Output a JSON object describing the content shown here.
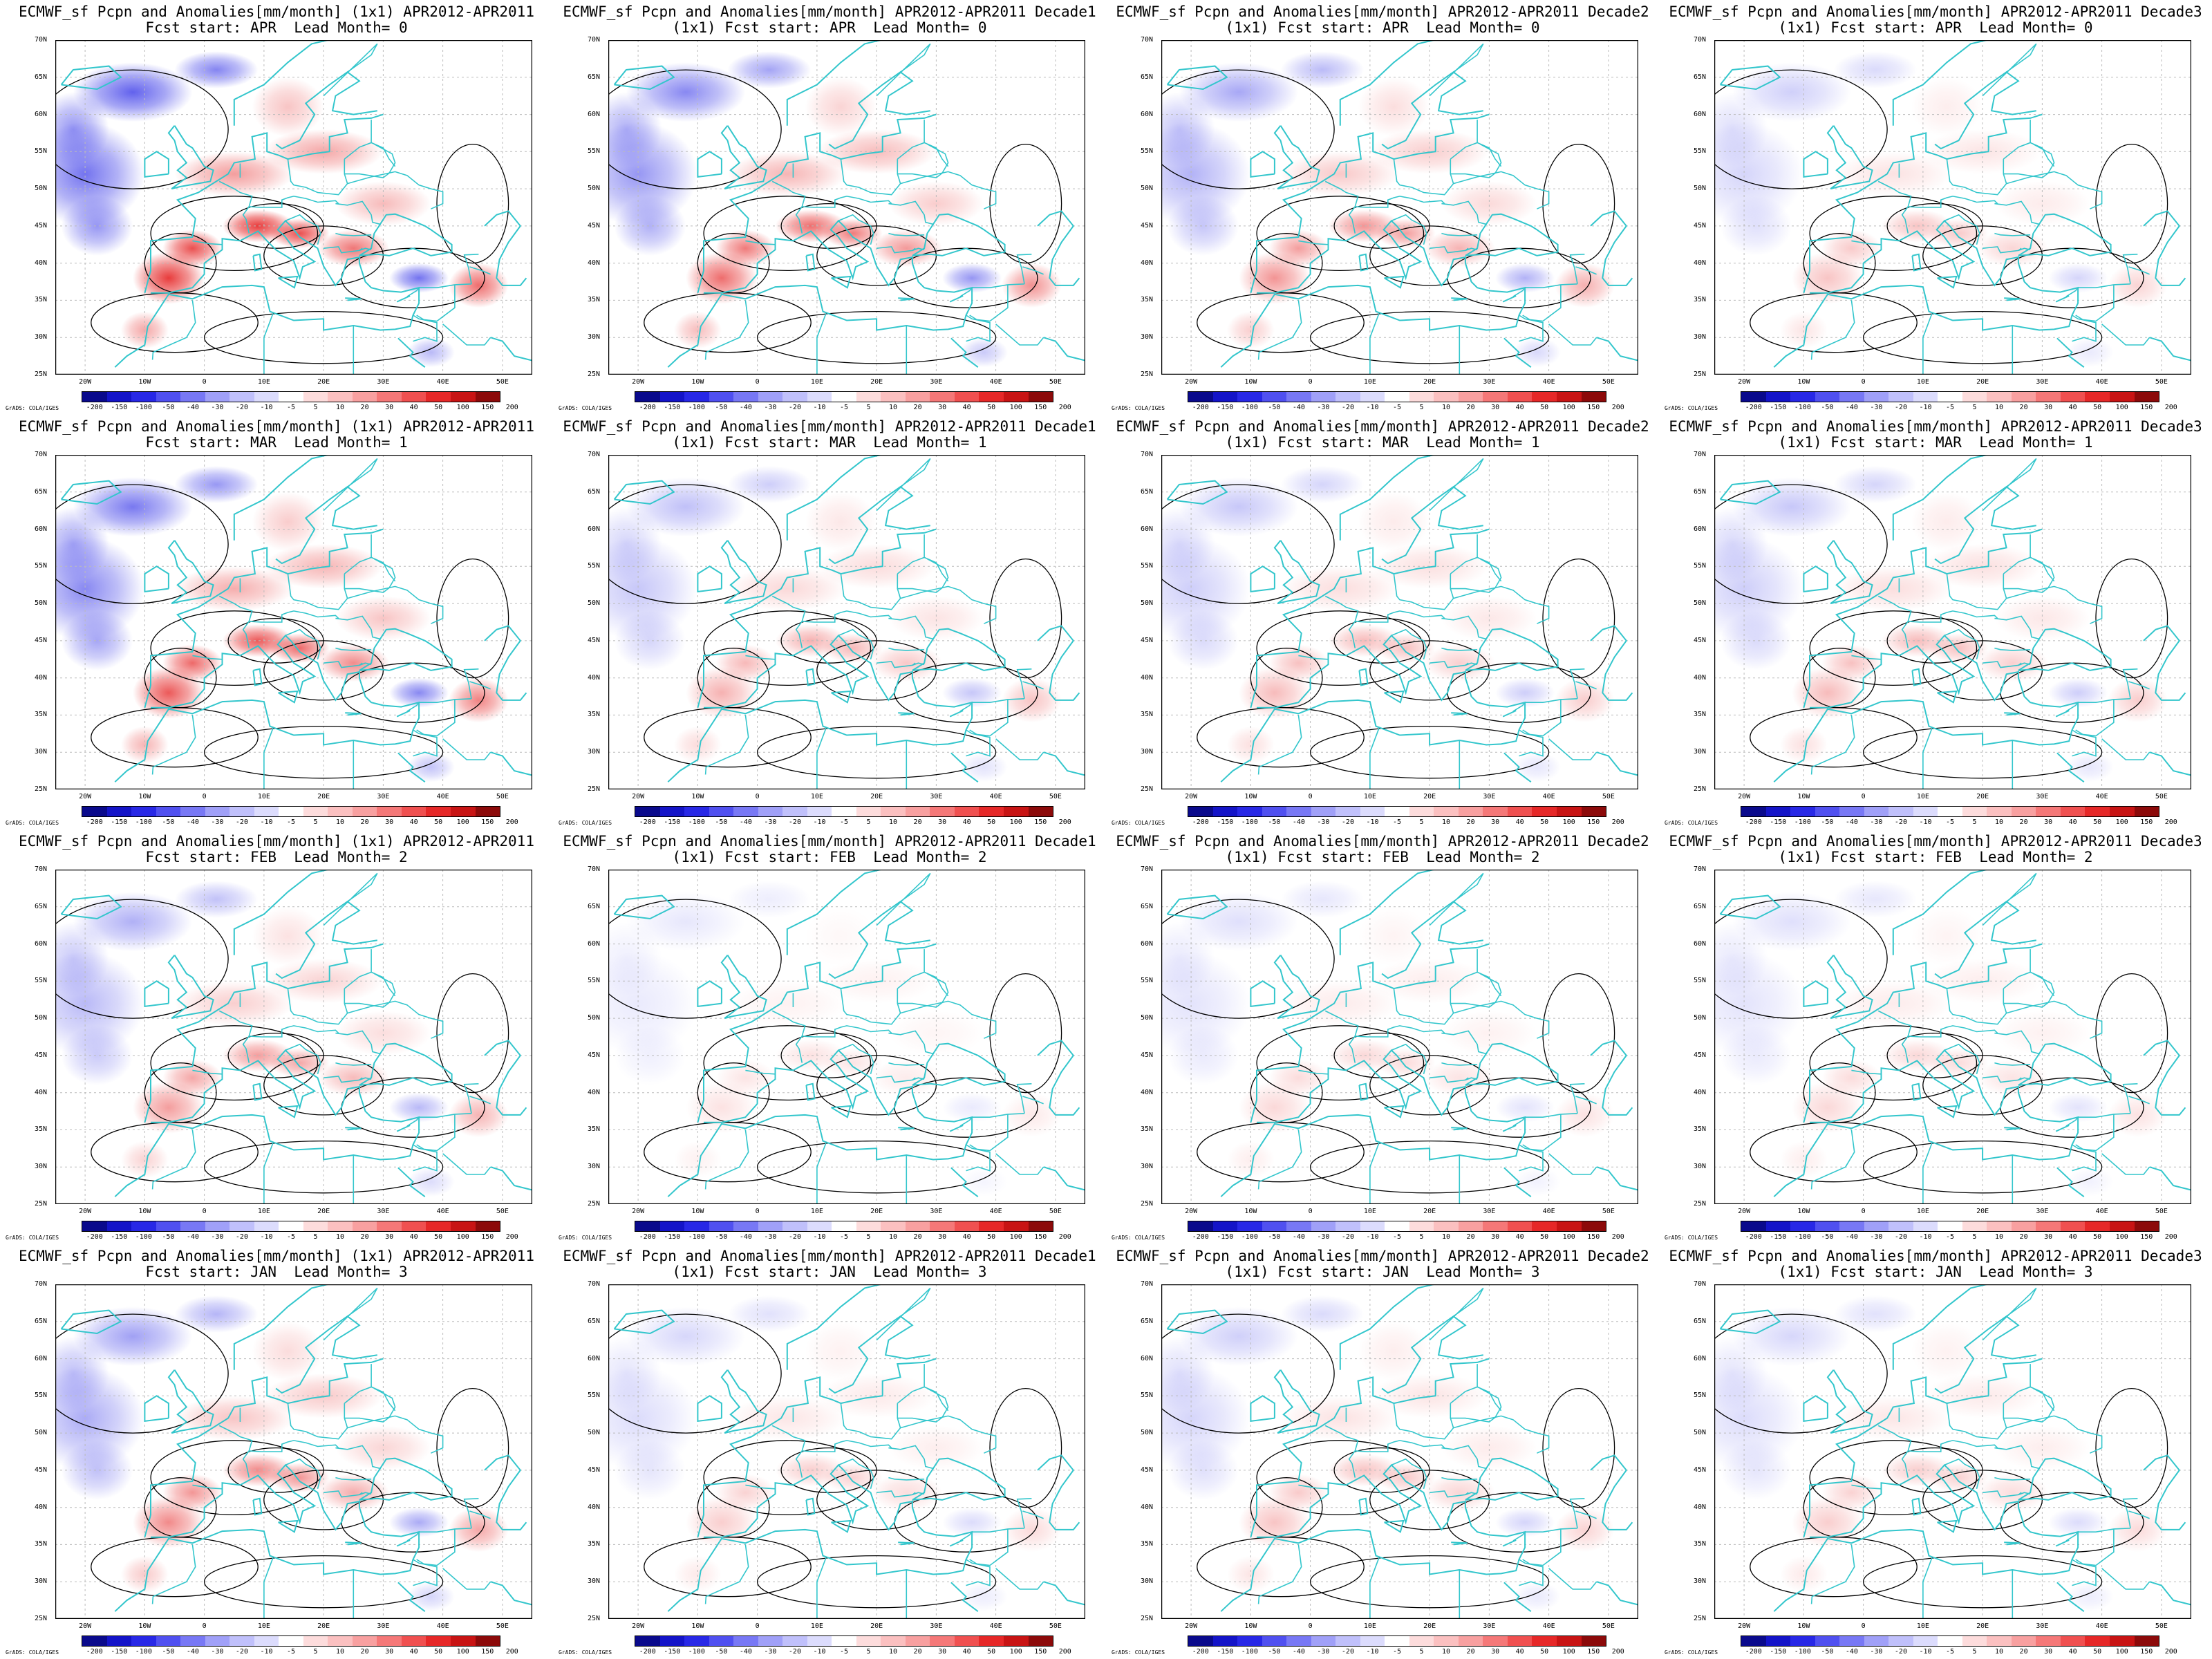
{
  "panels": [
    {
      "line1": "ECMWF_sf Pcpn and Anomalies[mm/month] (1x1) APR2012-APR2011",
      "line2": "Fcst start: APR  Lead Month= 0",
      "intensity": 1.0
    },
    {
      "line1": "ECMWF_sf Pcpn and Anomalies[mm/month] APR2012-APR2011 Decade1",
      "line2": "(1x1) Fcst start: APR  Lead Month= 0",
      "intensity": 0.75
    },
    {
      "line1": "ECMWF_sf Pcpn and Anomalies[mm/month] APR2012-APR2011 Decade2",
      "line2": "(1x1) Fcst start: APR  Lead Month= 0",
      "intensity": 0.55
    },
    {
      "line1": "ECMWF_sf Pcpn and Anomalies[mm/month] APR2012-APR2011 Decade3",
      "line2": "(1x1) Fcst start: APR  Lead Month= 0",
      "intensity": 0.3
    },
    {
      "line1": "ECMWF_sf Pcpn and Anomalies[mm/month] (1x1) APR2012-APR2011",
      "line2": "Fcst start: MAR  Lead Month= 1",
      "intensity": 0.85
    },
    {
      "line1": "ECMWF_sf Pcpn and Anomalies[mm/month] APR2012-APR2011 Decade1",
      "line2": "(1x1) Fcst start: MAR  Lead Month= 1",
      "intensity": 0.4
    },
    {
      "line1": "ECMWF_sf Pcpn and Anomalies[mm/month] APR2012-APR2011 Decade2",
      "line2": "(1x1) Fcst start: MAR  Lead Month= 1",
      "intensity": 0.35
    },
    {
      "line1": "ECMWF_sf Pcpn and Anomalies[mm/month] APR2012-APR2011 Decade3",
      "line2": "(1x1) Fcst start: MAR  Lead Month= 1",
      "intensity": 0.35
    },
    {
      "line1": "ECMWF_sf Pcpn and Anomalies[mm/month] (1x1) APR2012-APR2011",
      "line2": "Fcst start: FEB  Lead Month= 2",
      "intensity": 0.5
    },
    {
      "line1": "ECMWF_sf Pcpn and Anomalies[mm/month] APR2012-APR2011 Decade1",
      "line2": "(1x1) Fcst start: FEB  Lead Month= 2",
      "intensity": 0.15
    },
    {
      "line1": "ECMWF_sf Pcpn and Anomalies[mm/month] APR2012-APR2011 Decade2",
      "line2": "(1x1) Fcst start: FEB  Lead Month= 2",
      "intensity": 0.2
    },
    {
      "line1": "ECMWF_sf Pcpn and Anomalies[mm/month] APR2012-APR2011 Decade3",
      "line2": "(1x1) Fcst start: FEB  Lead Month= 2",
      "intensity": 0.2
    },
    {
      "line1": "ECMWF_sf Pcpn and Anomalies[mm/month] (1x1) APR2012-APR2011",
      "line2": "Fcst start: JAN  Lead Month= 3",
      "intensity": 0.6
    },
    {
      "line1": "ECMWF_sf Pcpn and Anomalies[mm/month] APR2012-APR2011 Decade1",
      "line2": "(1x1) Fcst start: JAN  Lead Month= 3",
      "intensity": 0.25
    },
    {
      "line1": "ECMWF_sf Pcpn and Anomalies[mm/month] APR2012-APR2011 Decade2",
      "line2": "(1x1) Fcst start: JAN  Lead Month= 3",
      "intensity": 0.3
    },
    {
      "line1": "ECMWF_sf Pcpn and Anomalies[mm/month] APR2012-APR2011 Decade3",
      "line2": "(1x1) Fcst start: JAN  Lead Month= 3",
      "intensity": 0.25
    }
  ],
  "lat_labels": [
    "70N",
    "65N",
    "60N",
    "55N",
    "50N",
    "45N",
    "40N",
    "35N",
    "30N",
    "25N"
  ],
  "lon_labels": [
    "20W",
    "10W",
    "0",
    "10E",
    "20E",
    "30E",
    "40E",
    "50E"
  ],
  "colorbar": {
    "labels": [
      "-200",
      "-150",
      "-100",
      "-50",
      "-40",
      "-30",
      "-20",
      "-10",
      "-5",
      "5",
      "10",
      "20",
      "30",
      "40",
      "50",
      "100",
      "150",
      "200"
    ],
    "colors": [
      "#0a0a8c",
      "#1414c8",
      "#2828e6",
      "#5050f0",
      "#7878f5",
      "#a0a0f8",
      "#c0c0fb",
      "#dcdcfd",
      "#ffffff",
      "#fddcdc",
      "#fbc0c0",
      "#f8a0a0",
      "#f57878",
      "#f05050",
      "#e62828",
      "#c81414",
      "#8c0a0a"
    ],
    "credit": "GrADS: COLA/IGES"
  },
  "colors": {
    "coast": "#33c6cc",
    "contour": "#000000",
    "grid": "#bbbbbb"
  }
}
